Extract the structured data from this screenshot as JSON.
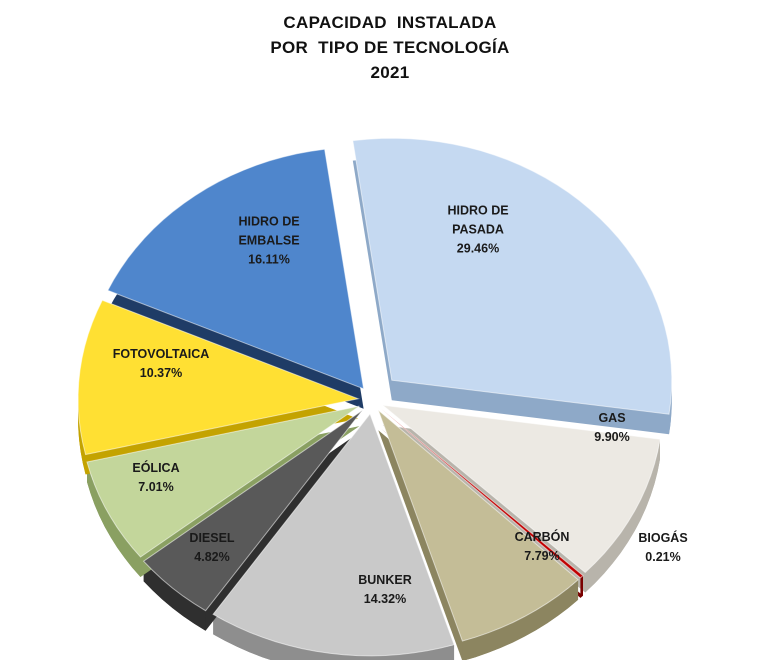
{
  "chart_data": {
    "type": "pie",
    "title_lines": [
      "CAPACIDAD  INSTALADA",
      "POR  TIPO DE TECNOLOGÍA",
      "2021"
    ],
    "unit": "%",
    "slices": [
      {
        "label_lines": [
          "HIDRO  DE",
          "PASADA"
        ],
        "value": 29.46,
        "value_text": "29.46%",
        "color": "#c5d9f1",
        "side": "#8ea9c8"
      },
      {
        "label_lines": [
          "GAS"
        ],
        "value": 9.9,
        "value_text": "9.90%",
        "color": "#ece9e3",
        "side": "#b8b4ab"
      },
      {
        "label_lines": [
          "BIOGÁS"
        ],
        "value": 0.21,
        "value_text": "0.21%",
        "color": "#c00000",
        "side": "#7a0000"
      },
      {
        "label_lines": [
          "CARBÓN"
        ],
        "value": 7.79,
        "value_text": "7.79%",
        "color": "#c4bd97",
        "side": "#8c8560"
      },
      {
        "label_lines": [
          "BUNKER"
        ],
        "value": 14.32,
        "value_text": "14.32%",
        "color": "#c9c9c9",
        "side": "#8e8e8e"
      },
      {
        "label_lines": [
          "DIESEL"
        ],
        "value": 4.82,
        "value_text": "4.82%",
        "color": "#595959",
        "side": "#2f2f2f"
      },
      {
        "label_lines": [
          "EÓLICA"
        ],
        "value": 7.01,
        "value_text": "7.01%",
        "color": "#c3d69b",
        "side": "#8aa062"
      },
      {
        "label_lines": [
          "FOTOVOLTAICA"
        ],
        "value": 10.37,
        "value_text": "10.37%",
        "color": "#ffe033",
        "side": "#c4a300"
      },
      {
        "label_lines": [
          "HIDRO  DE",
          "EMBALSE"
        ],
        "value": 16.11,
        "value_text": "16.11%",
        "color": "#4f86cc",
        "side": "#1f3c66"
      }
    ]
  }
}
